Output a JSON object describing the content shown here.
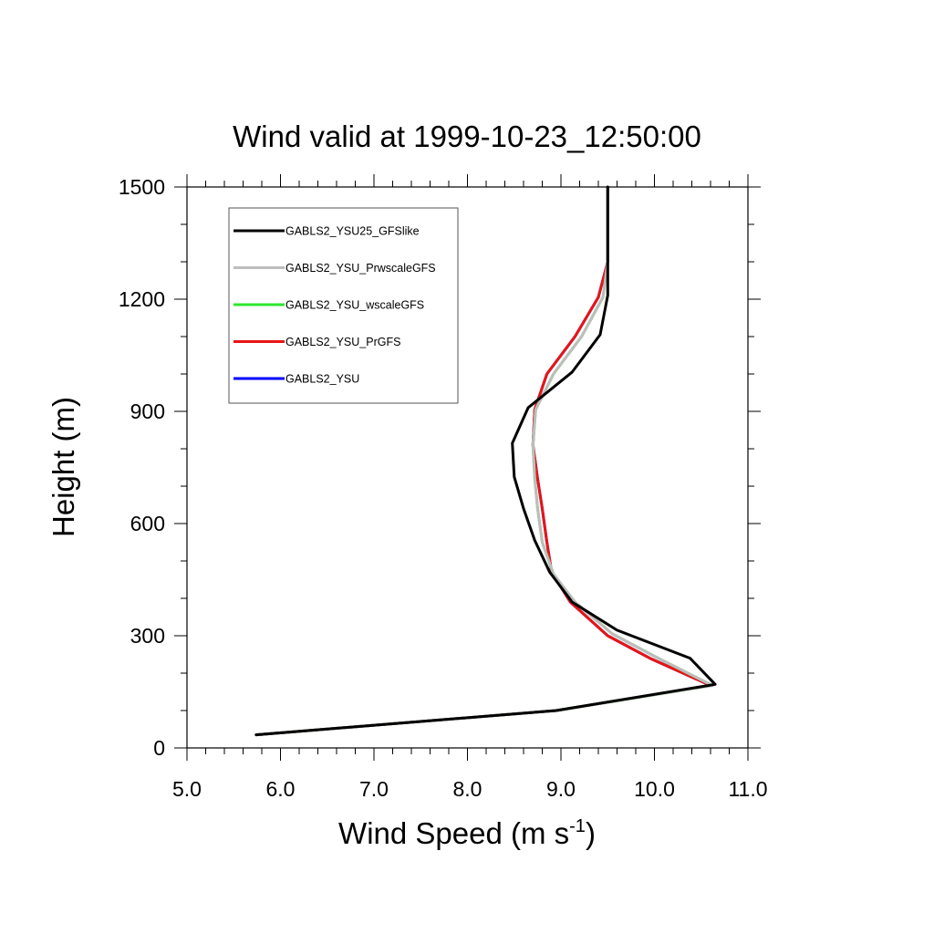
{
  "chart_data": {
    "type": "line",
    "title": "Wind valid at 1999-10-23_12:50:00",
    "xlabel": "Wind Speed (m s",
    "xlabel_sup": "-1",
    "xlabel_end": ")",
    "ylabel": "Height (m)",
    "xlim": [
      5.0,
      11.0
    ],
    "ylim": [
      0,
      1500
    ],
    "x_ticks": [
      5.0,
      6.0,
      7.0,
      8.0,
      9.0,
      10.0,
      11.0
    ],
    "x_tick_labels": [
      "5.0",
      "6.0",
      "7.0",
      "8.0",
      "9.0",
      "10.0",
      "11.0"
    ],
    "y_ticks": [
      0,
      300,
      600,
      900,
      1200,
      1500
    ],
    "y_tick_labels": [
      "0",
      "300",
      "600",
      "900",
      "1200",
      "1500"
    ],
    "grid": false,
    "legend_position": "top-left",
    "series": [
      {
        "name": "GABLS2_YSU",
        "color": "#0000ff",
        "points": [
          [
            5.74,
            35
          ],
          [
            8.95,
            100
          ],
          [
            10.6,
            167
          ],
          [
            9.95,
            240
          ],
          [
            9.5,
            300
          ],
          [
            9.1,
            390
          ],
          [
            8.9,
            470
          ],
          [
            8.85,
            550
          ],
          [
            8.8,
            640
          ],
          [
            8.75,
            720
          ],
          [
            8.7,
            810
          ],
          [
            8.72,
            905
          ],
          [
            8.85,
            1000
          ],
          [
            9.15,
            1100
          ],
          [
            9.4,
            1205
          ],
          [
            9.5,
            1300
          ],
          [
            9.5,
            1500
          ]
        ]
      },
      {
        "name": "GABLS2_YSU_PrGFS",
        "color": "#e81515",
        "points": [
          [
            5.74,
            35
          ],
          [
            8.95,
            100
          ],
          [
            10.6,
            167
          ],
          [
            9.95,
            240
          ],
          [
            9.5,
            300
          ],
          [
            9.1,
            390
          ],
          [
            8.9,
            470
          ],
          [
            8.85,
            550
          ],
          [
            8.8,
            640
          ],
          [
            8.75,
            720
          ],
          [
            8.7,
            810
          ],
          [
            8.72,
            905
          ],
          [
            8.85,
            1000
          ],
          [
            9.15,
            1100
          ],
          [
            9.4,
            1205
          ],
          [
            9.5,
            1300
          ],
          [
            9.5,
            1500
          ]
        ]
      },
      {
        "name": "GABLS2_YSU_wscaleGFS",
        "color": "#2ee62e",
        "points": [
          [
            5.74,
            35
          ],
          [
            8.95,
            100
          ],
          [
            10.62,
            167
          ],
          [
            10.0,
            245
          ],
          [
            9.55,
            305
          ],
          [
            9.15,
            390
          ],
          [
            8.92,
            465
          ],
          [
            8.8,
            550
          ],
          [
            8.75,
            640
          ],
          [
            8.72,
            720
          ],
          [
            8.7,
            810
          ],
          [
            8.73,
            905
          ],
          [
            8.92,
            1000
          ],
          [
            9.22,
            1100
          ],
          [
            9.45,
            1205
          ],
          [
            9.5,
            1300
          ],
          [
            9.5,
            1500
          ]
        ]
      },
      {
        "name": "GABLS2_YSU_PrwscaleGFS",
        "color": "#bdbdbd",
        "points": [
          [
            5.74,
            35
          ],
          [
            8.95,
            100
          ],
          [
            10.62,
            167
          ],
          [
            10.0,
            245
          ],
          [
            9.55,
            305
          ],
          [
            9.15,
            390
          ],
          [
            8.92,
            465
          ],
          [
            8.8,
            550
          ],
          [
            8.75,
            640
          ],
          [
            8.72,
            720
          ],
          [
            8.7,
            810
          ],
          [
            8.73,
            905
          ],
          [
            8.92,
            1000
          ],
          [
            9.22,
            1100
          ],
          [
            9.45,
            1205
          ],
          [
            9.5,
            1300
          ],
          [
            9.5,
            1500
          ]
        ]
      },
      {
        "name": "GABLS2_YSU25_GFSlike",
        "color": "#000000",
        "points": [
          [
            5.74,
            35
          ],
          [
            8.95,
            100
          ],
          [
            10.65,
            170
          ],
          [
            10.38,
            240
          ],
          [
            9.6,
            315
          ],
          [
            9.12,
            390
          ],
          [
            8.88,
            470
          ],
          [
            8.72,
            555
          ],
          [
            8.6,
            640
          ],
          [
            8.5,
            725
          ],
          [
            8.48,
            815
          ],
          [
            8.65,
            910
          ],
          [
            9.12,
            1005
          ],
          [
            9.42,
            1105
          ],
          [
            9.5,
            1210
          ],
          [
            9.5,
            1300
          ],
          [
            9.5,
            1500
          ]
        ]
      }
    ],
    "legend_order": [
      "GABLS2_YSU25_GFSlike",
      "GABLS2_YSU_PrwscaleGFS",
      "GABLS2_YSU_wscaleGFS",
      "GABLS2_YSU_PrGFS",
      "GABLS2_YSU"
    ]
  }
}
